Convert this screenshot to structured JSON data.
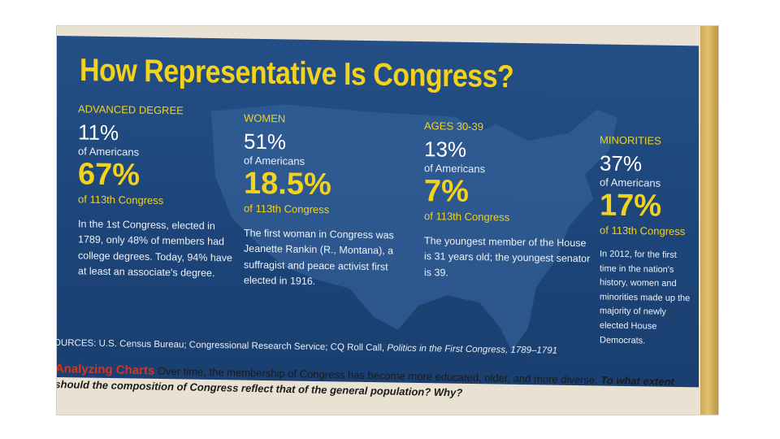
{
  "title": "How Representative Is Congress?",
  "columns": [
    {
      "label": "ADVANCED DEGREE",
      "us_value": "11%",
      "us_caption": "of Americans",
      "congress_value": "67%",
      "congress_caption": "of 113th Congress",
      "note": "In the 1st Congress, elected in 1789, only 48% of members had college degrees. Today, 94% have at least an associate's degree."
    },
    {
      "label": "WOMEN",
      "us_value": "51%",
      "us_caption": "of Americans",
      "congress_value": "18.5%",
      "congress_caption": "of 113th Congress",
      "note": "The first woman in Congress was Jeanette Rankin (R., Montana), a suffragist and peace activist first elected in 1916."
    },
    {
      "label": "AGES 30-39",
      "us_value": "13%",
      "us_caption": "of Americans",
      "congress_value": "7%",
      "congress_caption": "of 113th Congress",
      "note": "The youngest member of the House is 31 years old; the youngest senator is 39."
    },
    {
      "label": "MINORITIES",
      "us_value": "37%",
      "us_caption": "of Americans",
      "congress_value": "17%",
      "congress_caption": "of 113th Congress",
      "note": "In 2012, for the first time in the nation's history, women and minorities made up the majority of newly elected House Democrats."
    }
  ],
  "sources": {
    "text": "OURCES: U.S. Census Bureau; Congressional Research Service; CQ Roll Call, ",
    "italic": "Politics in the First Congress, 1789–1791"
  },
  "analyzing": {
    "heading": "Analyzing Charts",
    "text": " Over time, the membership of Congress has become more educated, older, and more diverse. ",
    "question": "To what extent should the composition of Congress reflect that of the general population? Why?"
  },
  "colors": {
    "panel": "#234f86",
    "accent_yellow": "#f3d21c",
    "heading_red": "#d9331c"
  }
}
